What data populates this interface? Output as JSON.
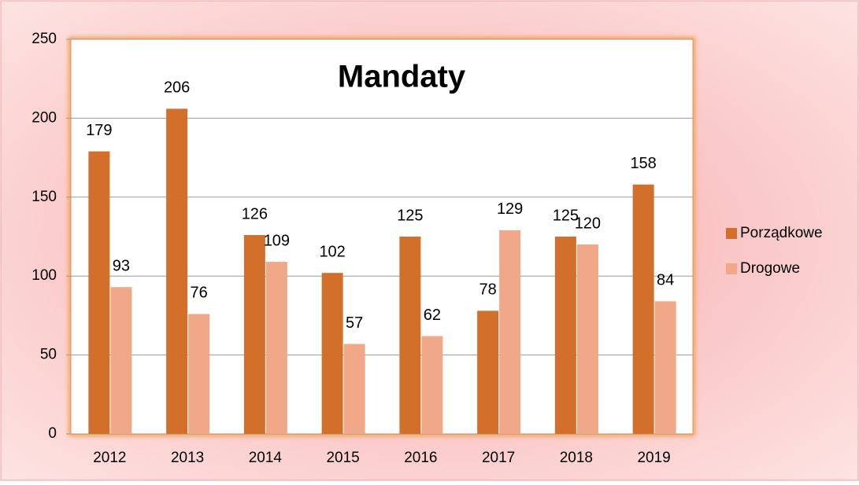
{
  "chart_data": {
    "type": "bar",
    "title": "Mandaty",
    "categories": [
      "2012",
      "2013",
      "2014",
      "2015",
      "2016",
      "2017",
      "2018",
      "2019"
    ],
    "series": [
      {
        "name": "Porządkowe",
        "color": "#d2702b",
        "values": [
          179,
          206,
          126,
          102,
          125,
          78,
          125,
          158
        ]
      },
      {
        "name": "Drogowe",
        "color": "#f0a888",
        "values": [
          93,
          76,
          109,
          57,
          62,
          129,
          120,
          84
        ]
      }
    ],
    "ylim": [
      0,
      250
    ],
    "yticks": [
      0,
      50,
      100,
      150,
      200,
      250
    ],
    "grid": true,
    "legend": "right"
  }
}
